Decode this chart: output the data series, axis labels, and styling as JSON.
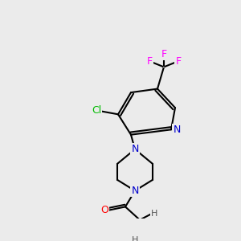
{
  "background_color": "#ebebeb",
  "bond_color": "#000000",
  "bond_width": 1.5,
  "atom_colors": {
    "N": "#0000cc",
    "O": "#ff0000",
    "F": "#ff00ff",
    "Cl": "#00bb00",
    "H": "#555555",
    "C": "#000000"
  },
  "font_size": 9,
  "font_size_small": 8
}
